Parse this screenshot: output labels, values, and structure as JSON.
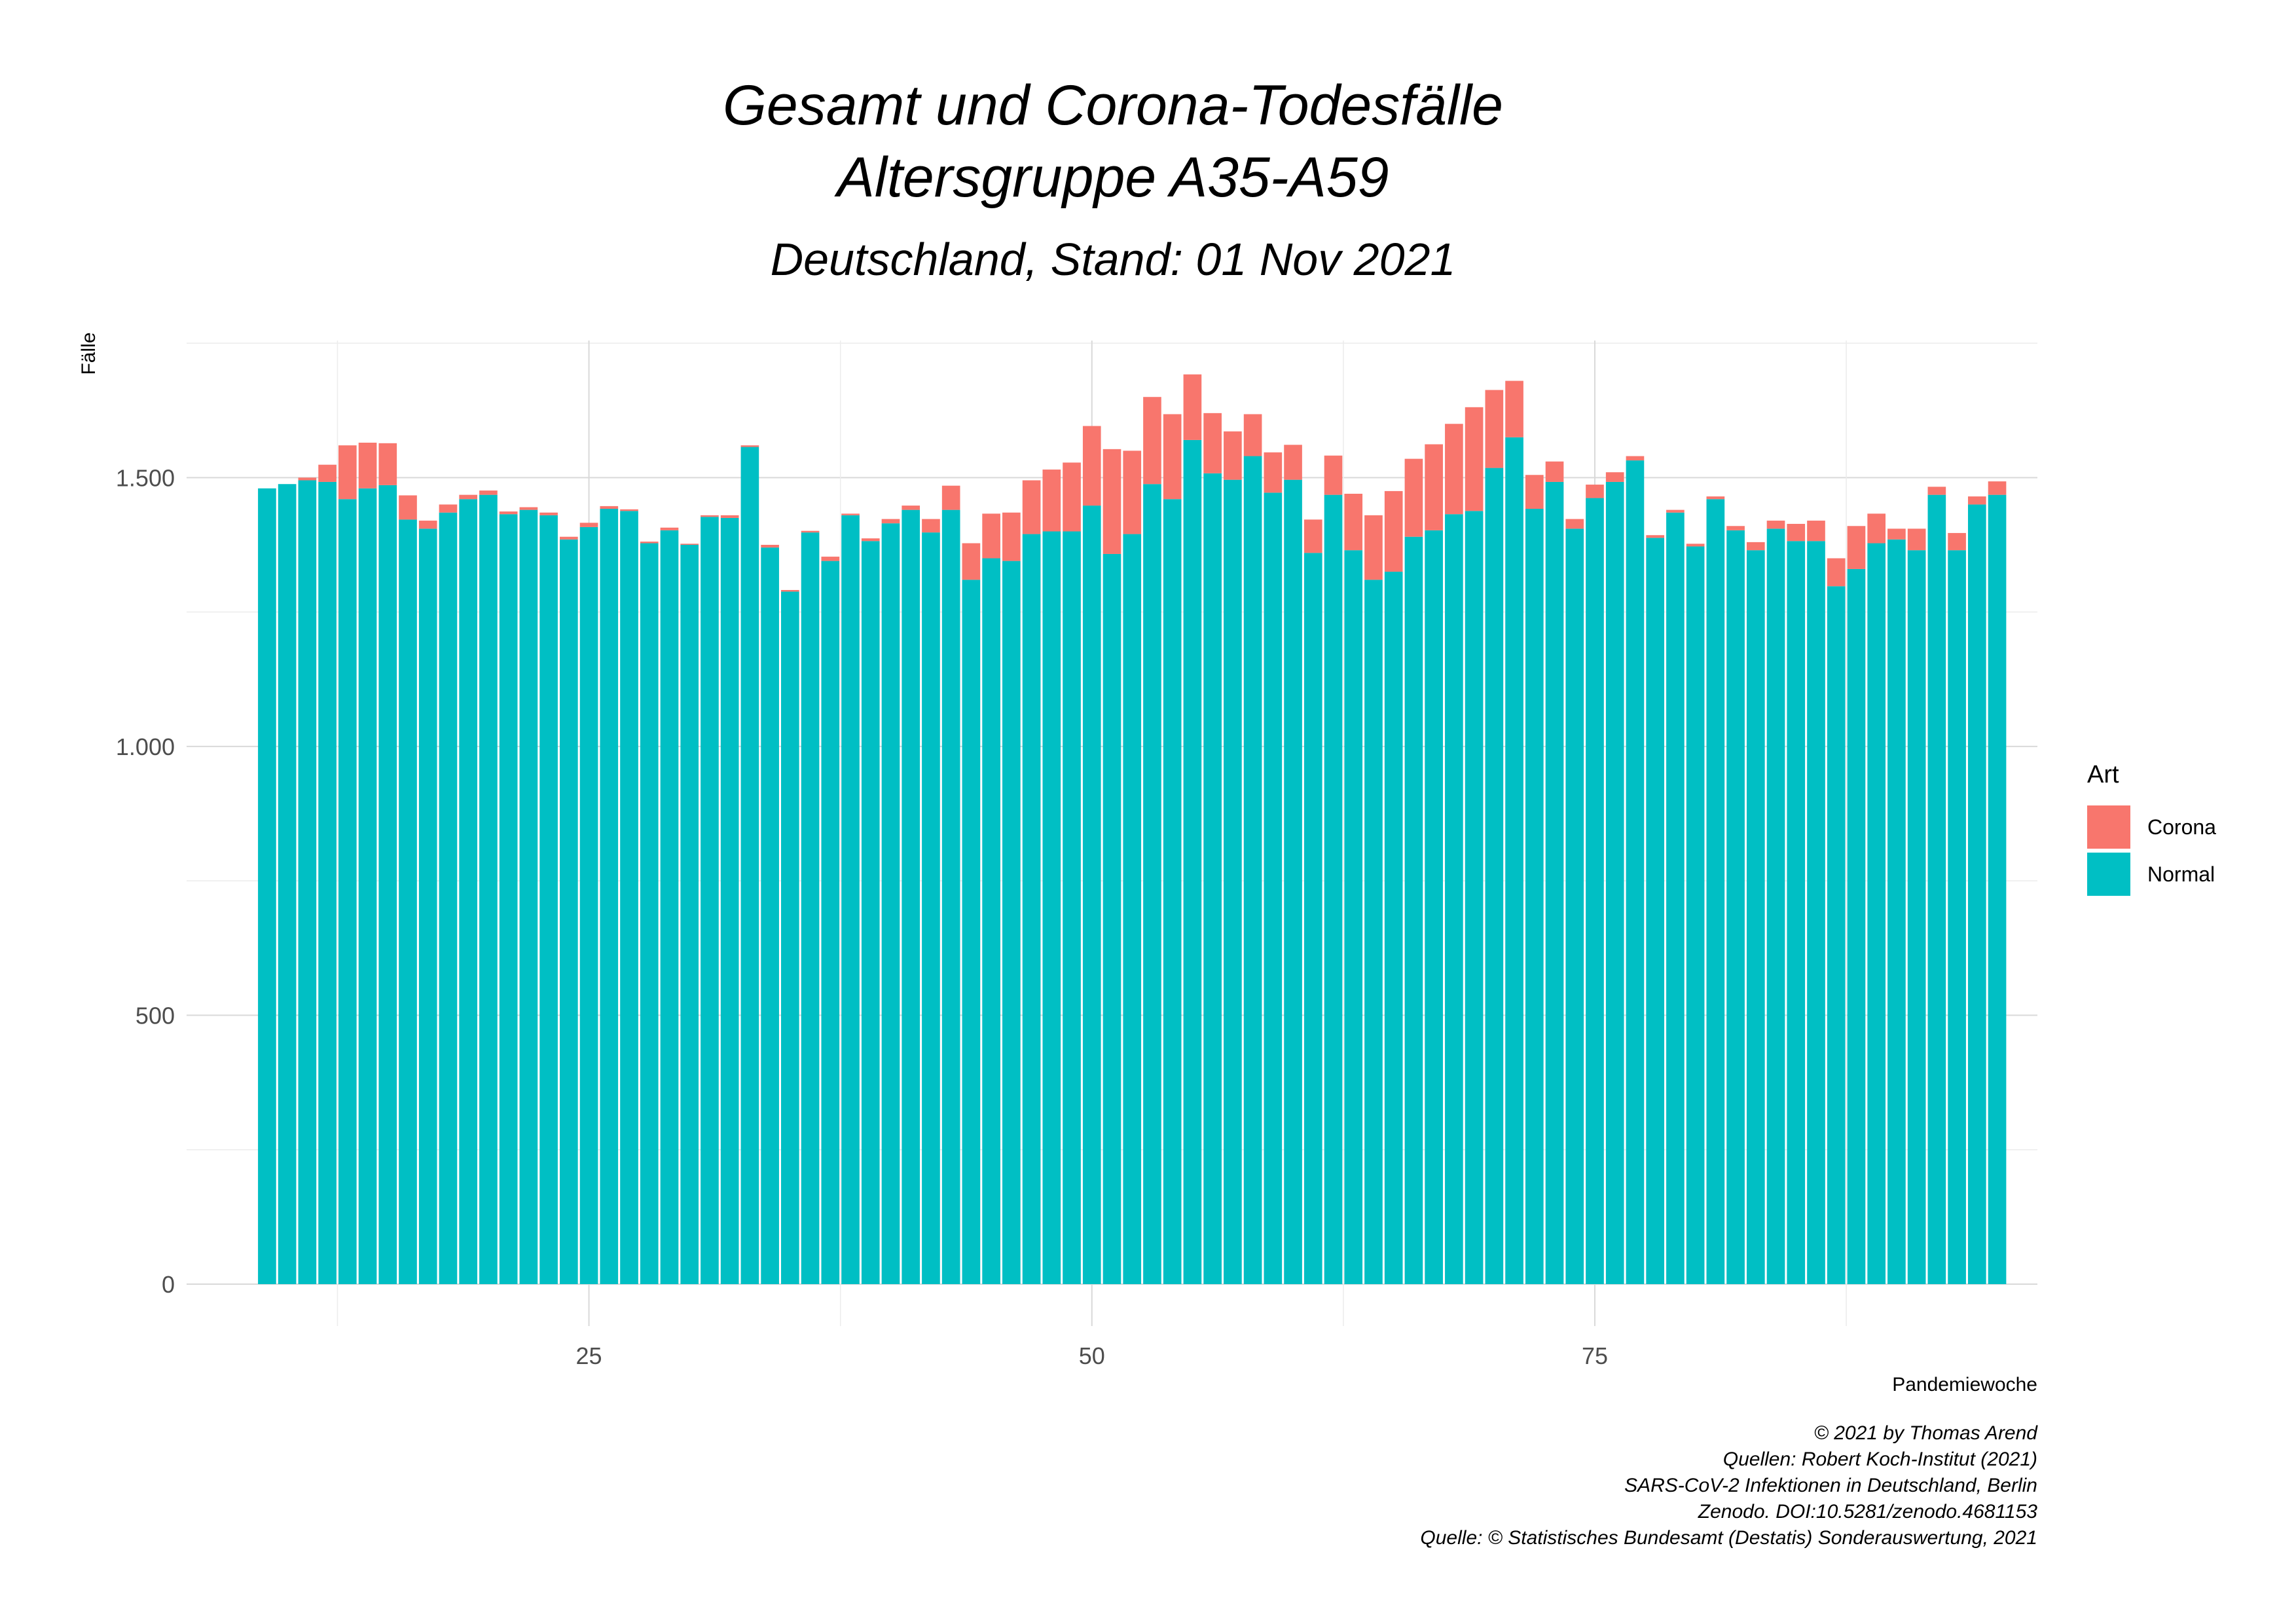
{
  "chart_data": {
    "type": "bar",
    "stacked": true,
    "title": "Gesamt und Corona-Todesfälle",
    "title_line2": "Altersgruppe A35-A59",
    "subtitle": "Deutschland, Stand: 01 Nov 2021",
    "xlabel": "Pandemiewoche",
    "ylabel": "Fälle",
    "x_ticks": [
      25,
      50,
      75
    ],
    "y_ticks": [
      0,
      500,
      1000,
      1500
    ],
    "y_tick_labels": [
      "0",
      "500",
      "1.000",
      "1.500"
    ],
    "xlim": [
      5,
      97
    ],
    "ylim": [
      -78,
      1755
    ],
    "grid": true,
    "legend": {
      "title": "Art",
      "position": "right",
      "entries": [
        {
          "name": "Corona",
          "color": "#F8766D"
        },
        {
          "name": "Normal",
          "color": "#00BFC4"
        }
      ]
    },
    "x": [
      9,
      10,
      11,
      12,
      13,
      14,
      15,
      16,
      17,
      18,
      19,
      20,
      21,
      22,
      23,
      24,
      25,
      26,
      27,
      28,
      29,
      30,
      31,
      32,
      33,
      34,
      35,
      36,
      37,
      38,
      39,
      40,
      41,
      42,
      43,
      44,
      45,
      46,
      47,
      48,
      49,
      50,
      51,
      52,
      53,
      54,
      55,
      56,
      57,
      58,
      59,
      60,
      61,
      62,
      63,
      64,
      65,
      66,
      67,
      68,
      69,
      70,
      71,
      72,
      73,
      74,
      75,
      76,
      77,
      78,
      79,
      80,
      81,
      82,
      83,
      84,
      85,
      86,
      87,
      88,
      89,
      90,
      91,
      92,
      93,
      94,
      95
    ],
    "series": [
      {
        "name": "Normal",
        "color": "#00BFC4",
        "values": [
          1480,
          1488,
          1495,
          1492,
          1460,
          1480,
          1486,
          1422,
          1405,
          1435,
          1460,
          1468,
          1432,
          1440,
          1430,
          1385,
          1408,
          1442,
          1438,
          1378,
          1402,
          1375,
          1427,
          1425,
          1557,
          1370,
          1288,
          1398,
          1345,
          1430,
          1382,
          1415,
          1440,
          1398,
          1440,
          1310,
          1350,
          1345,
          1395,
          1400,
          1400,
          1448,
          1358,
          1395,
          1488,
          1460,
          1570,
          1508,
          1496,
          1540,
          1472,
          1496,
          1360,
          1468,
          1365,
          1310,
          1325,
          1390,
          1402,
          1432,
          1438,
          1518,
          1575,
          1442,
          1492,
          1405,
          1462,
          1492,
          1532,
          1388,
          1435,
          1372,
          1460,
          1402,
          1365,
          1405,
          1382,
          1382,
          1298,
          1330,
          1378,
          1385,
          1365,
          1468,
          1365,
          1450,
          1468
        ]
      },
      {
        "name": "Corona",
        "color": "#F8766D",
        "values": [
          0,
          0,
          5,
          32,
          100,
          85,
          78,
          45,
          15,
          15,
          8,
          8,
          5,
          5,
          5,
          5,
          8,
          5,
          3,
          3,
          5,
          2,
          3,
          5,
          3,
          5,
          3,
          3,
          8,
          3,
          5,
          8,
          8,
          25,
          45,
          68,
          83,
          90,
          100,
          115,
          128,
          148,
          195,
          155,
          162,
          158,
          122,
          112,
          90,
          78,
          75,
          65,
          62,
          73,
          105,
          120,
          150,
          145,
          160,
          168,
          193,
          145,
          105,
          63,
          38,
          18,
          25,
          18,
          8,
          5,
          5,
          5,
          5,
          8,
          15,
          15,
          32,
          38,
          52,
          80,
          55,
          20,
          40,
          15,
          32,
          15,
          25
        ]
      }
    ]
  }
}
